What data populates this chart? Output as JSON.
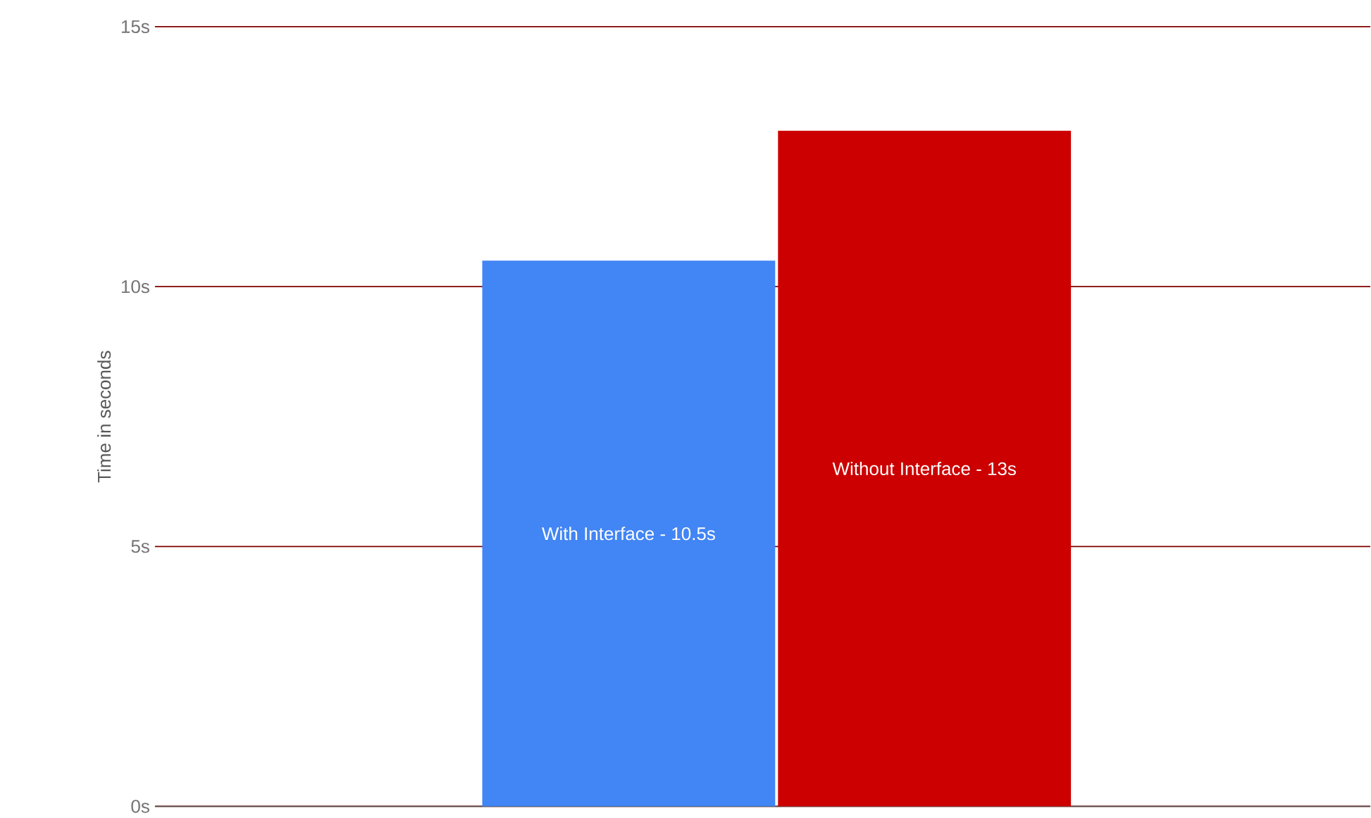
{
  "chart_data": {
    "type": "bar",
    "ylabel": "Time in seconds",
    "categories": [
      null
    ],
    "series": [
      {
        "color": "#4285f4",
        "values": [
          10.5
        ]
      },
      {
        "color": "#cc0000",
        "values": [
          13
        ]
      }
    ],
    "annotations": [
      "With Interface - 10.5s",
      "Without Interface - 13s"
    ],
    "ylim": [
      0,
      15
    ],
    "yticks": [
      {
        "value": 0,
        "label": "0s"
      },
      {
        "value": 5,
        "label": "5s"
      },
      {
        "value": 10,
        "label": "10s"
      },
      {
        "value": 15,
        "label": "15s"
      }
    ],
    "grid": "y"
  }
}
